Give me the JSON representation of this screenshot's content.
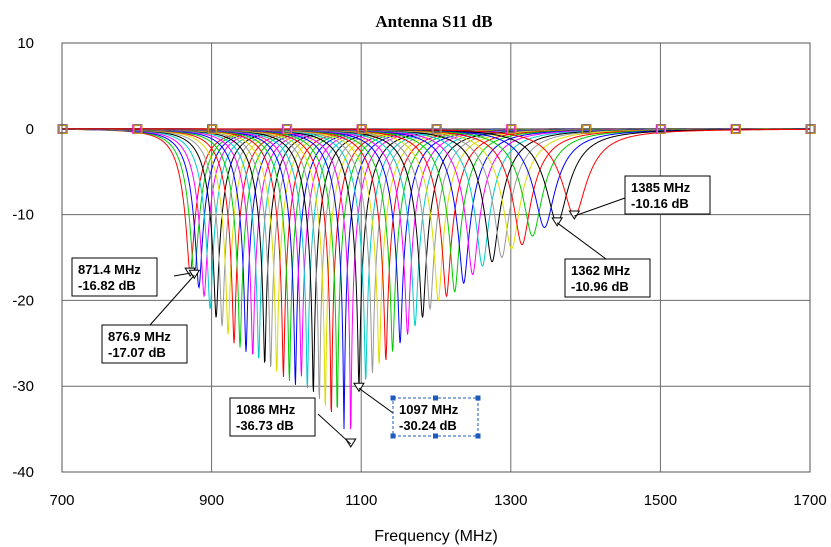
{
  "chart_data": {
    "type": "line",
    "title": "Antenna S11 dB",
    "xlabel": "Frequency (MHz)",
    "ylabel": "",
    "xlim": [
      700,
      1700
    ],
    "ylim": [
      -40,
      10
    ],
    "x_ticks": [
      "700",
      "900",
      "1100",
      "1300",
      "1500",
      "1700"
    ],
    "y_ticks": [
      "10",
      "0",
      "-10",
      "-20",
      "-30",
      "-40"
    ],
    "grid": true,
    "legend": "none",
    "marker_x": [
      700,
      800,
      900,
      1000,
      1100,
      1200,
      1300,
      1400,
      1500,
      1600,
      1700
    ],
    "series": [
      {
        "resonance_mhz": 871.4,
        "min_db": -16.82,
        "color": "#ff0000"
      },
      {
        "resonance_mhz": 876.9,
        "min_db": -17.07,
        "color": "#00cc00"
      },
      {
        "resonance_mhz": 883,
        "min_db": -18.5,
        "color": "#0000ff"
      },
      {
        "resonance_mhz": 890,
        "min_db": -19.5,
        "color": "#ff00ff"
      },
      {
        "resonance_mhz": 898,
        "min_db": -21,
        "color": "#00cccc"
      },
      {
        "resonance_mhz": 906,
        "min_db": -22,
        "color": "#000000"
      },
      {
        "resonance_mhz": 914,
        "min_db": -23,
        "color": "#999999"
      },
      {
        "resonance_mhz": 922,
        "min_db": -24,
        "color": "#dddd00"
      },
      {
        "resonance_mhz": 930,
        "min_db": -25,
        "color": "#ff0000"
      },
      {
        "resonance_mhz": 938,
        "min_db": -25.5,
        "color": "#00cc00"
      },
      {
        "resonance_mhz": 946,
        "min_db": -26,
        "color": "#0000ff"
      },
      {
        "resonance_mhz": 955,
        "min_db": -26.5,
        "color": "#ff00ff"
      },
      {
        "resonance_mhz": 963,
        "min_db": -27,
        "color": "#00cccc"
      },
      {
        "resonance_mhz": 971,
        "min_db": -27.5,
        "color": "#000000"
      },
      {
        "resonance_mhz": 979,
        "min_db": -28,
        "color": "#999999"
      },
      {
        "resonance_mhz": 987,
        "min_db": -28.5,
        "color": "#dddd00"
      },
      {
        "resonance_mhz": 996,
        "min_db": -29,
        "color": "#ff0000"
      },
      {
        "resonance_mhz": 1004,
        "min_db": -29.5,
        "color": "#00cc00"
      },
      {
        "resonance_mhz": 1012,
        "min_db": -30,
        "color": "#0000ff"
      },
      {
        "resonance_mhz": 1020,
        "min_db": -29,
        "color": "#ff00ff"
      },
      {
        "resonance_mhz": 1028,
        "min_db": -30.5,
        "color": "#00cccc"
      },
      {
        "resonance_mhz": 1036,
        "min_db": -31,
        "color": "#000000"
      },
      {
        "resonance_mhz": 1044,
        "min_db": -32,
        "color": "#999999"
      },
      {
        "resonance_mhz": 1052,
        "min_db": -33,
        "color": "#dddd00"
      },
      {
        "resonance_mhz": 1060,
        "min_db": -34,
        "color": "#ff0000"
      },
      {
        "resonance_mhz": 1068,
        "min_db": -33.5,
        "color": "#00cc00"
      },
      {
        "resonance_mhz": 1077,
        "min_db": -35,
        "color": "#0000ff"
      },
      {
        "resonance_mhz": 1086,
        "min_db": -36.73,
        "color": "#ff00ff"
      },
      {
        "resonance_mhz": 1097,
        "min_db": -30.24,
        "color": "#000000"
      },
      {
        "resonance_mhz": 1106,
        "min_db": -29.5,
        "color": "#00cccc"
      },
      {
        "resonance_mhz": 1115,
        "min_db": -28.5,
        "color": "#999999"
      },
      {
        "resonance_mhz": 1124,
        "min_db": -27.5,
        "color": "#dddd00"
      },
      {
        "resonance_mhz": 1133,
        "min_db": -27,
        "color": "#ff0000"
      },
      {
        "resonance_mhz": 1142,
        "min_db": -26,
        "color": "#00cc00"
      },
      {
        "resonance_mhz": 1152,
        "min_db": -25,
        "color": "#0000ff"
      },
      {
        "resonance_mhz": 1162,
        "min_db": -24,
        "color": "#ff00ff"
      },
      {
        "resonance_mhz": 1172,
        "min_db": -23,
        "color": "#00cccc"
      },
      {
        "resonance_mhz": 1182,
        "min_db": -22,
        "color": "#000000"
      },
      {
        "resonance_mhz": 1192,
        "min_db": -21,
        "color": "#999999"
      },
      {
        "resonance_mhz": 1203,
        "min_db": -20,
        "color": "#dddd00"
      },
      {
        "resonance_mhz": 1214,
        "min_db": -19.5,
        "color": "#ff0000"
      },
      {
        "resonance_mhz": 1225,
        "min_db": -19,
        "color": "#00cc00"
      },
      {
        "resonance_mhz": 1237,
        "min_db": -18,
        "color": "#0000ff"
      },
      {
        "resonance_mhz": 1249,
        "min_db": -17,
        "color": "#ff00ff"
      },
      {
        "resonance_mhz": 1262,
        "min_db": -16,
        "color": "#00cccc"
      },
      {
        "resonance_mhz": 1275,
        "min_db": -15.5,
        "color": "#000000"
      },
      {
        "resonance_mhz": 1288,
        "min_db": -15,
        "color": "#999999"
      },
      {
        "resonance_mhz": 1301,
        "min_db": -14,
        "color": "#dddd00"
      },
      {
        "resonance_mhz": 1315,
        "min_db": -13.5,
        "color": "#ff0000"
      },
      {
        "resonance_mhz": 1329,
        "min_db": -12.5,
        "color": "#00cc00"
      },
      {
        "resonance_mhz": 1345,
        "min_db": -11.5,
        "color": "#0000ff"
      },
      {
        "resonance_mhz": 1362,
        "min_db": -10.96,
        "color": "#000000"
      },
      {
        "resonance_mhz": 1385,
        "min_db": -10.16,
        "color": "#ff0000"
      }
    ],
    "annotations": [
      {
        "label_mhz": "871.4 MHz",
        "label_db": "-16.82 dB",
        "x": 871.4,
        "y": -16.82,
        "selected": false
      },
      {
        "label_mhz": "876.9 MHz",
        "label_db": "-17.07 dB",
        "x": 876.9,
        "y": -17.07,
        "selected": false
      },
      {
        "label_mhz": "1086 MHz",
        "label_db": "-36.73 dB",
        "x": 1086,
        "y": -36.73,
        "selected": false
      },
      {
        "label_mhz": "1097 MHz",
        "label_db": "-30.24 dB",
        "x": 1097,
        "y": -30.24,
        "selected": true
      },
      {
        "label_mhz": "1362 MHz",
        "label_db": "-10.96 dB",
        "x": 1362,
        "y": -10.96,
        "selected": false
      },
      {
        "label_mhz": "1385 MHz",
        "label_db": "-10.16 dB",
        "x": 1385,
        "y": -10.16,
        "selected": false
      }
    ]
  }
}
